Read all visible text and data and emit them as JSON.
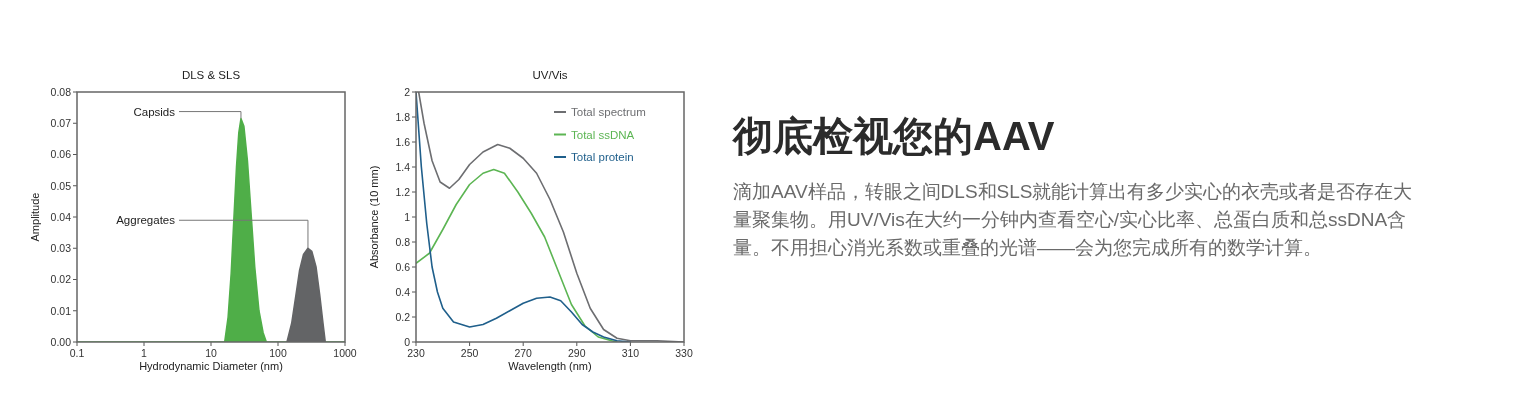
{
  "chart_data": [
    {
      "type": "area",
      "title": "DLS & SLS",
      "xlabel": "Hydrodynamic Diameter (nm)",
      "ylabel": "Amplitude",
      "log": "x",
      "xlim": [
        0.1,
        1000
      ],
      "xticks": [
        0.1,
        1,
        10,
        100,
        1000
      ],
      "ylim": [
        0,
        0.08
      ],
      "yticks": [
        {
          "value": 0,
          "label": "0.00"
        },
        {
          "value": 0.01,
          "label": "0.01"
        },
        {
          "value": 0.02,
          "label": "0.02"
        },
        {
          "value": 0.03,
          "label": "0.03"
        },
        {
          "value": 0.04,
          "label": "0.04"
        },
        {
          "value": 0.05,
          "label": "0.05"
        },
        {
          "value": 0.06,
          "label": "0.06"
        },
        {
          "value": 0.07,
          "label": "0.07"
        },
        {
          "value": 0.08,
          "label": "0.08"
        }
      ],
      "series": [
        {
          "color": "#4fae48",
          "x": [
            0.1,
            16,
            18,
            20,
            22,
            24,
            26,
            28,
            31,
            35,
            40,
            45,
            52,
            60,
            67,
            1000
          ],
          "values": [
            0,
            0,
            0.008,
            0.022,
            0.04,
            0.056,
            0.067,
            0.0715,
            0.069,
            0.058,
            0.04,
            0.024,
            0.01,
            0.003,
            0,
            0
          ]
        },
        {
          "color": "#636466",
          "x": [
            136,
            160,
            185,
            210,
            240,
            280,
            320,
            370,
            420,
            470,
            508
          ],
          "values": [
            0,
            0.006,
            0.015,
            0.023,
            0.028,
            0.03,
            0.029,
            0.024,
            0.015,
            0.006,
            0
          ]
        }
      ],
      "annotations": [
        {
          "text": "Capsids",
          "x": 28,
          "y": 0.0715
        },
        {
          "text": "Aggregates",
          "x": 280,
          "y": 0.03
        }
      ]
    },
    {
      "type": "line",
      "title": "UV/Vis",
      "xlabel": "Wavelength (nm)",
      "ylabel": "Absorbance (10 mm)",
      "xlim": [
        230,
        330
      ],
      "xticks": [
        230,
        250,
        270,
        290,
        310,
        330
      ],
      "ylim": [
        0,
        2
      ],
      "yticks": [
        0,
        0.2,
        0.4,
        0.6,
        0.8,
        1,
        1.2,
        1.4,
        1.6,
        1.8,
        2
      ],
      "legend": "top right",
      "series": [
        {
          "name": "Total spectrum",
          "color": "#6d6e71",
          "x": [
            231,
            233,
            236,
            239,
            242.5,
            246,
            250,
            255,
            260.5,
            265,
            270,
            275,
            280,
            285,
            290,
            295,
            300,
            305,
            310,
            320,
            330
          ],
          "values": [
            2,
            1.75,
            1.45,
            1.28,
            1.23,
            1.3,
            1.42,
            1.52,
            1.58,
            1.55,
            1.47,
            1.35,
            1.14,
            0.88,
            0.55,
            0.27,
            0.1,
            0.03,
            0.01,
            0.01,
            0
          ]
        },
        {
          "name": "Total ssDNA",
          "color": "#5cb553",
          "x": [
            230,
            235,
            240,
            245,
            250,
            255,
            259,
            263,
            268,
            273,
            278,
            283,
            288,
            293,
            298,
            303,
            305
          ],
          "values": [
            0.63,
            0.71,
            0.9,
            1.1,
            1.26,
            1.35,
            1.38,
            1.35,
            1.2,
            1.03,
            0.84,
            0.57,
            0.3,
            0.13,
            0.04,
            0.01,
            0
          ]
        },
        {
          "name": "Total protein",
          "color": "#1f5f8b",
          "x": [
            230,
            232,
            234,
            236,
            238,
            240,
            244,
            250,
            255,
            260,
            265,
            270,
            275,
            280,
            284,
            288,
            292,
            296,
            300,
            305,
            310
          ],
          "values": [
            2,
            1.4,
            0.95,
            0.6,
            0.4,
            0.27,
            0.16,
            0.12,
            0.14,
            0.19,
            0.25,
            0.31,
            0.35,
            0.36,
            0.33,
            0.24,
            0.14,
            0.08,
            0.04,
            0.01,
            0
          ]
        }
      ]
    },
    {
      "type": "other",
      "title": "彻底检视您的AAV",
      "annotations": [
        "滴加AAV样品，转眼之间DLS和SLS就能计算出有多少实心的衣壳或者是否存在大量聚集物。用UV/Vis在大约一分钟内查看空心/实心比率、总蛋白质和总ssDNA含量。不用担心消光系数或重叠的光谱——会为您完成所有的数学计算。"
      ]
    }
  ]
}
